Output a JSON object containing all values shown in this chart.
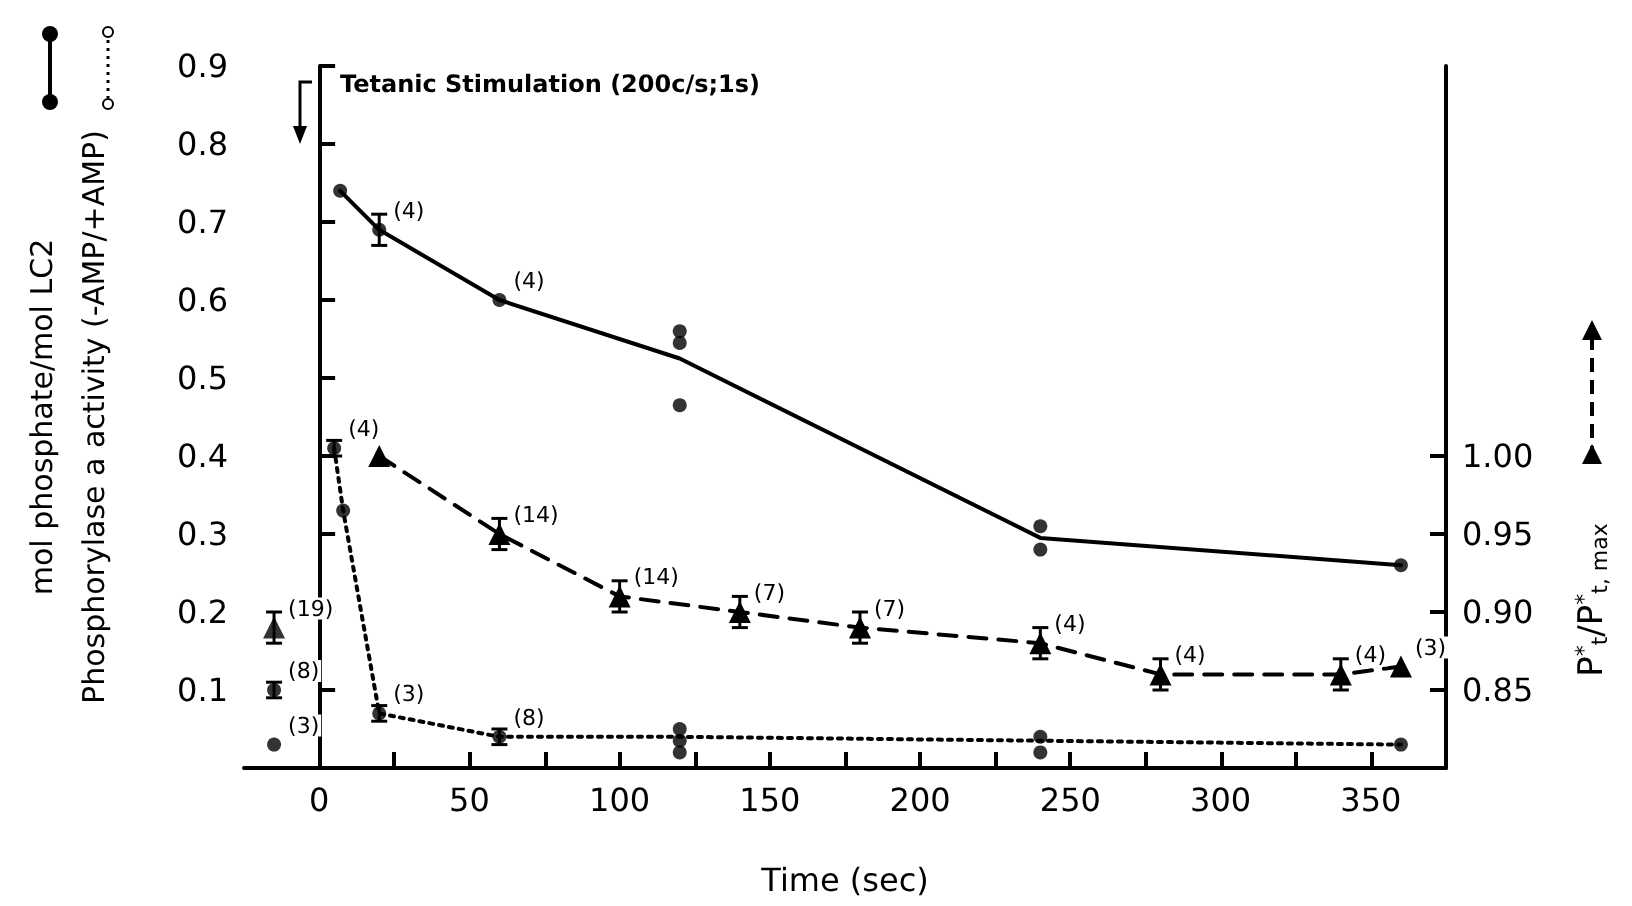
{
  "chart_data": {
    "type": "line",
    "annotations": [
      "Tetanic Stimulation (200c/s;1s)",
      {
        "text": "(8)",
        "x": -15,
        "y": 0.1
      },
      {
        "text": "(4)",
        "x": 20,
        "y": 0.69
      },
      {
        "text": "(4)",
        "x": 60,
        "y": 0.6
      },
      {
        "text": "(3)",
        "x": -15,
        "y": 0.03
      },
      {
        "text": "(4)",
        "x": 5,
        "y": 0.41
      },
      {
        "text": "(3)",
        "x": 20,
        "y": 0.07
      },
      {
        "text": "(8)",
        "x": 60,
        "y": 0.04
      },
      {
        "text": "(14)",
        "x": 60,
        "y": 0.3
      },
      {
        "text": "(14)",
        "x": 100,
        "y": 0.22
      },
      {
        "text": "(7)",
        "x": 140,
        "y": 0.2
      },
      {
        "text": "(7)",
        "x": 180,
        "y": 0.18
      },
      {
        "text": "(4)",
        "x": 240,
        "y": 0.16
      },
      {
        "text": "(4)",
        "x": 280,
        "y": 0.12
      },
      {
        "text": "(4)",
        "x": 340,
        "y": 0.12
      },
      {
        "text": "(3)",
        "x": 360,
        "y": 0.13
      },
      {
        "text": "(19)",
        "x": -15,
        "y": 0.18
      }
    ],
    "xlabel": "Time (sec)",
    "ylabel": "mol phosphate/mol LC2\nPhosphorylase a activity (-AMP/+AMP)",
    "y2label": "P$^{*}$$_{t}$/P$^{*}$$_{t, max}$",
    "xlim": [
      -25,
      375
    ],
    "xticks": [
      0,
      {
        "value": 25,
        "label": null
      },
      50,
      {
        "value": 75,
        "label": null
      },
      100,
      {
        "value": 125,
        "label": null
      },
      150,
      {
        "value": 175,
        "label": null
      },
      200,
      {
        "value": 225,
        "label": null
      },
      250,
      {
        "value": 275,
        "label": null
      },
      300,
      {
        "value": 325,
        "label": null
      },
      350
    ],
    "ylim": [
      0,
      0.9
    ],
    "yticks": [
      0.1,
      0.2,
      0.3,
      0.4,
      0.5,
      0.6,
      0.7,
      0.8,
      0.9
    ],
    "y2lim": [
      0.8,
      1.25
    ],
    "y2ticks": [
      0.85,
      {
        "value": 0.9,
        "label": "0.90"
      },
      0.95,
      {
        "value": 1,
        "label": "1.00"
      }
    ],
    "series": [
      {
        "color": "#000000",
        "marker": "none",
        "line_style": "solid",
        "x": [
          7,
          20,
          60,
          120,
          240,
          360
        ],
        "values": [
          0.74,
          0.69,
          0.6,
          0.525,
          0.295,
          0.26
        ]
      },
      {
        "type": "scatter",
        "color": "#000000",
        "marker": "circle",
        "x": [
          -15,
          7,
          20,
          60,
          120,
          120,
          120,
          240,
          240,
          360
        ],
        "values": [
          0.1,
          0.74,
          0.69,
          0.6,
          0.56,
          0.545,
          0.465,
          0.31,
          0.28,
          0.26
        ],
        "errors": [
          0.01,
          null,
          0.02,
          null,
          null,
          null,
          null,
          null,
          null,
          null
        ]
      },
      {
        "color": "#000000",
        "marker": "none",
        "line_style": "dotted",
        "x": [
          5,
          8,
          20,
          60,
          120,
          240,
          360
        ],
        "values": [
          0.41,
          0.33,
          0.07,
          0.04,
          0.04,
          0.035,
          0.03
        ]
      },
      {
        "type": "scatter",
        "color": "#000000",
        "marker": "circle",
        "x": [
          -15,
          5,
          8,
          20,
          60,
          120,
          120,
          120,
          240,
          240,
          360
        ],
        "values": [
          0.03,
          0.41,
          0.33,
          0.07,
          0.04,
          0.05,
          0.035,
          0.02,
          0.04,
          0.02,
          0.03
        ],
        "errors": [
          null,
          0.01,
          null,
          0.01,
          0.01,
          null,
          null,
          null,
          null,
          null,
          null
        ]
      },
      {
        "axis": "y2",
        "color": "#000000",
        "marker": "triangle",
        "line_style": "dashed",
        "x": [
          20,
          60,
          100,
          140,
          180,
          240,
          280,
          340,
          360
        ],
        "values": [
          1.0,
          0.95,
          0.91,
          0.9,
          0.89,
          0.88,
          0.86,
          0.86,
          0.865
        ],
        "errors": [
          null,
          0.01,
          0.01,
          0.01,
          0.01,
          0.01,
          0.01,
          0.01,
          null
        ]
      },
      {
        "type": "scatter",
        "axis": "y2",
        "color": "#000000",
        "marker": "triangle",
        "x": [
          -15
        ],
        "values": [
          0.89
        ],
        "errors": [
          0.01
        ]
      }
    ]
  }
}
